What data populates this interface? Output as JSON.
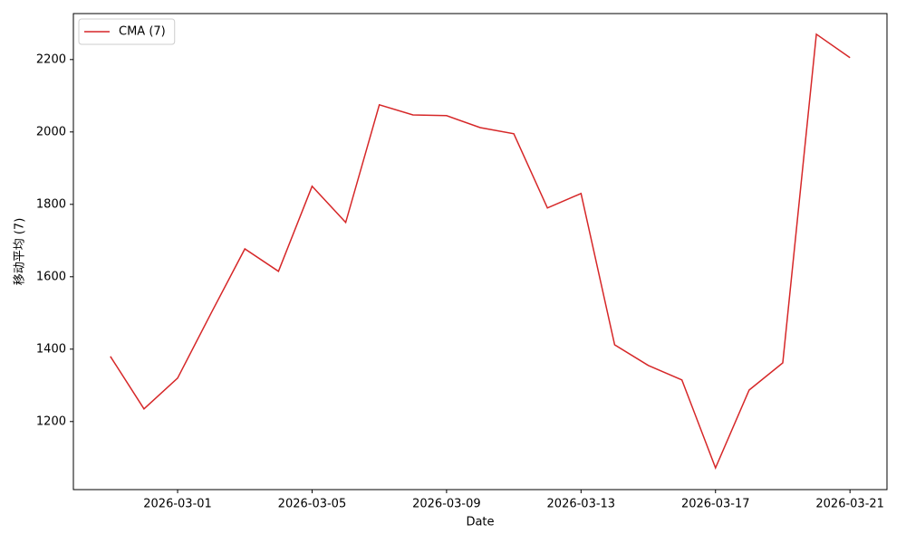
{
  "chart_data": {
    "type": "line",
    "x": [
      "2026-02-27",
      "2026-02-28",
      "2026-03-01",
      "2026-03-02",
      "2026-03-03",
      "2026-03-04",
      "2026-03-05",
      "2026-03-06",
      "2026-03-07",
      "2026-03-08",
      "2026-03-09",
      "2026-03-10",
      "2026-03-11",
      "2026-03-12",
      "2026-03-13",
      "2026-03-14",
      "2026-03-15",
      "2026-03-16",
      "2026-03-17",
      "2026-03-18",
      "2026-03-19",
      "2026-03-20",
      "2026-03-21"
    ],
    "series": [
      {
        "name": "CMA (7)",
        "color": "#d62728",
        "values": [
          1380,
          1235,
          1320,
          1500,
          1677,
          1615,
          1850,
          1750,
          2075,
          2047,
          2045,
          2012,
          1995,
          1790,
          1830,
          1412,
          1355,
          1315,
          1072,
          1287,
          1362,
          2270,
          2205
        ]
      }
    ],
    "xlabel": "Date",
    "ylabel": "移动平均 (7)",
    "xlim": [
      "2026-02-25T21:36",
      "2026-03-22T02:24"
    ],
    "xticks": [
      "2026-03-01",
      "2026-03-05",
      "2026-03-09",
      "2026-03-13",
      "2026-03-17",
      "2026-03-21"
    ],
    "ylim": [
      1012,
      2327
    ],
    "yticks": [
      1200,
      1400,
      1600,
      1800,
      2000,
      2200
    ],
    "legend": "upper left",
    "grid": false
  }
}
